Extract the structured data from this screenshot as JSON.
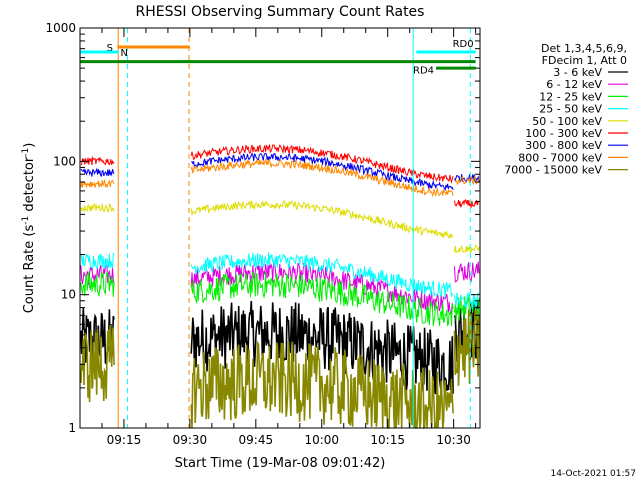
{
  "chart_data": {
    "type": "line",
    "title": "RHESSI Observing Summary Count Rates",
    "xlabel": "Start Time (19-Mar-08 09:01:42)",
    "ylabel_main": "Count Rate (s",
    "ylabel_sup1": "-1",
    "ylabel_mid": " detector",
    "ylabel_sup2": "-1",
    "ylabel_end": ")",
    "yscale": "log",
    "ylim": [
      1,
      1000
    ],
    "xlim_minutes": [
      5,
      40
    ],
    "x_unit": "minutes after 09:00",
    "xticks": [
      {
        "label": "09:15",
        "value": 15
      },
      {
        "label": "09:30",
        "value": 30
      },
      {
        "label": "09:45",
        "value": 45
      },
      {
        "label": "10:00",
        "value": 60
      },
      {
        "label": "10:15",
        "value": 75
      },
      {
        "label": "10:30",
        "value": 90
      }
    ],
    "yticks": [
      {
        "label": "1",
        "value": 1
      },
      {
        "label": "10",
        "value": 10
      },
      {
        "label": "100",
        "value": 100
      },
      {
        "label": "1000",
        "value": 1000
      }
    ],
    "legend_header": [
      "Det 1,3,4,5,6,9,",
      "FDecim 1, Att 0"
    ],
    "series": [
      {
        "name": "3 - 6 keV",
        "color": "#000000",
        "level_a": 4.5,
        "level_b": 4.5,
        "end": 5.5,
        "noise": 0.25
      },
      {
        "name": "6 - 12 keV",
        "color": "#dd00dd",
        "level_a": 14,
        "level_b": 13,
        "end": 15,
        "noise": 0.08
      },
      {
        "name": "12 - 25 keV",
        "color": "#00ee00",
        "level_a": 12,
        "level_b": 10.5,
        "end": 8,
        "noise": 0.1
      },
      {
        "name": "25 - 50 keV",
        "color": "#00ffff",
        "level_a": 18,
        "level_b": 16,
        "end": 9,
        "noise": 0.06
      },
      {
        "name": "50 - 100 keV",
        "color": "#dddd00",
        "level_a": 45,
        "level_b": 42,
        "end": 22,
        "noise": 0.03
      },
      {
        "name": "100 - 300 keV",
        "color": "#ff0000",
        "level_a": 100,
        "level_b": 110,
        "end": 48,
        "noise": 0.03
      },
      {
        "name": "300 - 800 keV",
        "color": "#0000ee",
        "level_a": 82,
        "level_b": 95,
        "end": 75,
        "noise": 0.03
      },
      {
        "name": "800 - 7000 keV",
        "color": "#ff8800",
        "level_a": 68,
        "level_b": 85,
        "end": 72,
        "noise": 0.03
      },
      {
        "name": "7000 - 15000 keV",
        "color": "#888800",
        "level_a": 3.0,
        "level_b": 2.0,
        "end": 4.0,
        "noise": 0.3
      }
    ],
    "segments": [
      {
        "label": "S",
        "color": "#ff8800",
        "x0": 13.5,
        "x1": 30,
        "y": 720
      },
      {
        "label": "N",
        "color": "#00ffff",
        "x0": 5,
        "x1": 13.8,
        "y": 660
      },
      {
        "label": "RD0",
        "color": "#00ffff",
        "x0": 81.5,
        "x1": 95,
        "y": 660
      },
      {
        "label": "RD4",
        "color": "#008800",
        "x0": 5,
        "x1": 95,
        "y": 560
      },
      {
        "label": "",
        "color": "#008800",
        "x0": 86,
        "x1": 95,
        "y": 500
      }
    ],
    "vlines": [
      {
        "x": 13.7,
        "color": "#ff8800",
        "style": "solid"
      },
      {
        "x": 15.8,
        "color": "#00ffff",
        "style": "dashed"
      },
      {
        "x": 29.8,
        "color": "#ff8800",
        "style": "dashed"
      },
      {
        "x": 80.8,
        "color": "#00ffff",
        "style": "solid"
      },
      {
        "x": 93.8,
        "color": "#00ffff",
        "style": "dashed"
      },
      {
        "x": 5,
        "color": "#00ffff",
        "style": "solid"
      }
    ]
  },
  "footer_date": "14-Oct-2021 01:57"
}
